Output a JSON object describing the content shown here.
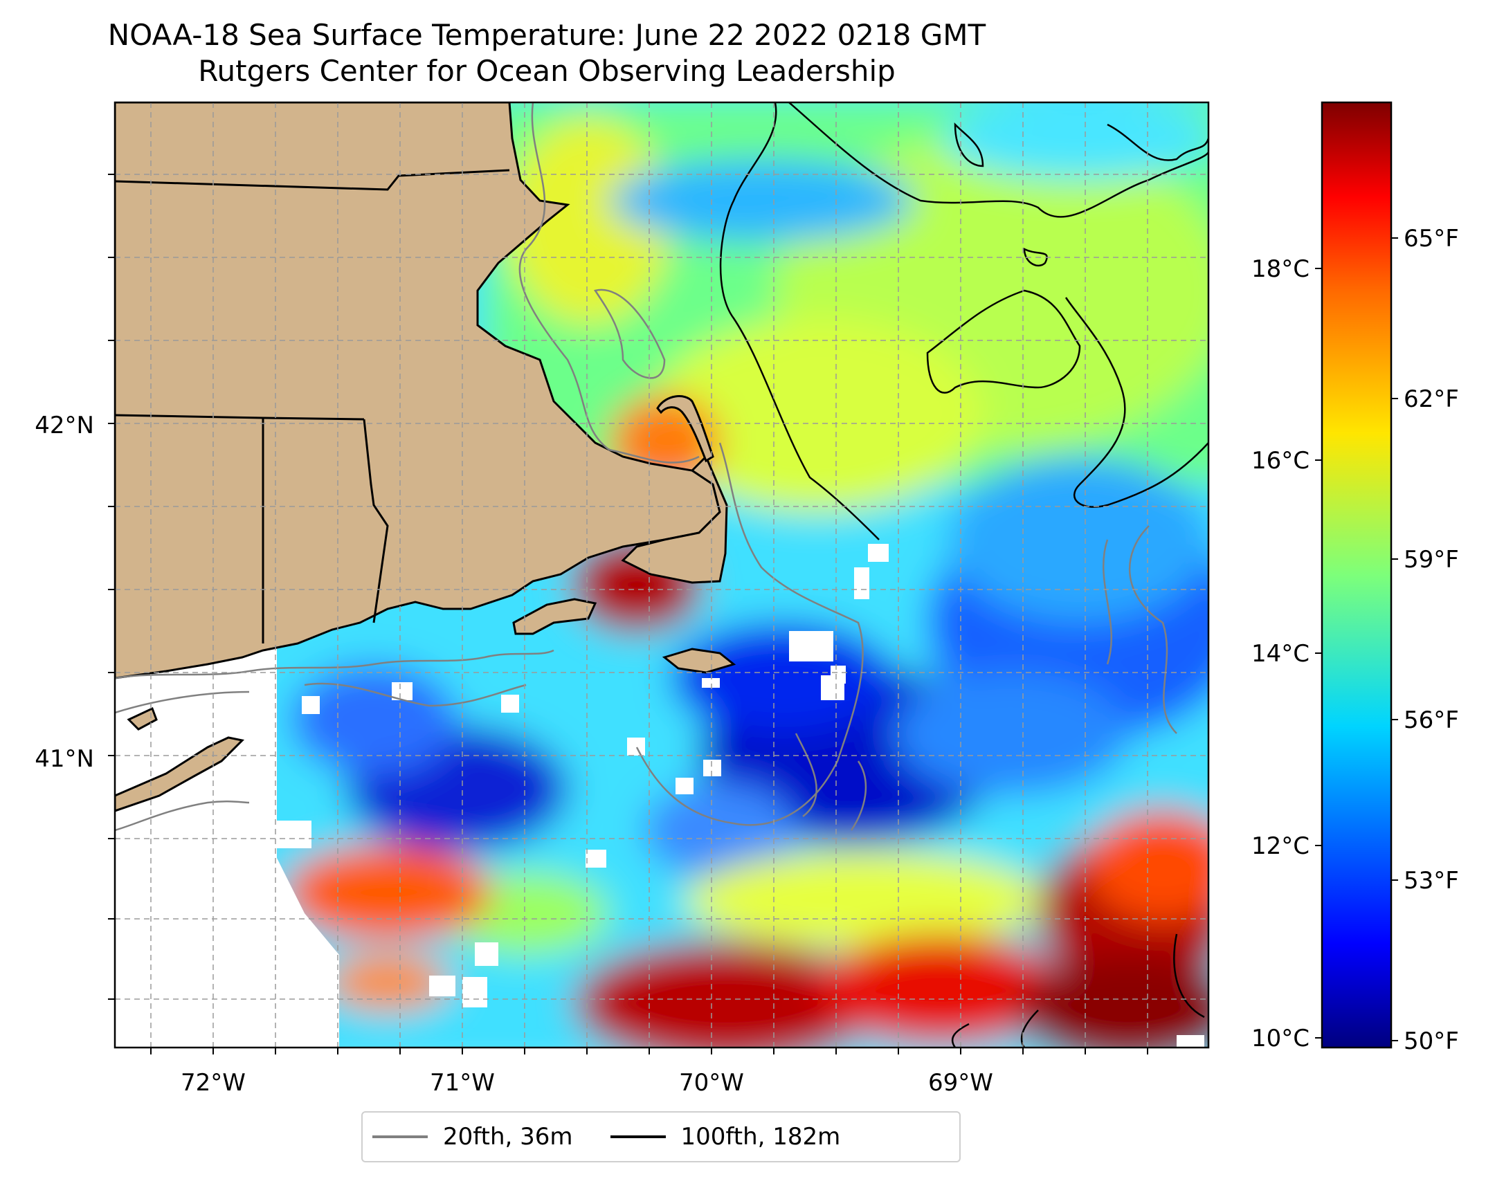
{
  "title": "NOAA-18 Sea Surface Temperature: June 22 2022 0218 GMT",
  "subtitle": "Rutgers Center for Ocean Observing Leadership",
  "map": {
    "lon_ticks": [
      "72°W",
      "71°W",
      "70°W",
      "69°W"
    ],
    "lat_ticks": [
      "42°N",
      "41°N"
    ],
    "colors": {
      "land": "#d2b48c",
      "coast": "#000000",
      "isobath_20": "#808080",
      "isobath_100": "#000000"
    }
  },
  "colorbar": {
    "celsius_ticks": [
      "18°C",
      "16°C",
      "14°C",
      "12°C",
      "10°C"
    ],
    "fahrenheit_ticks": [
      "65°F",
      "62°F",
      "59°F",
      "56°F",
      "53°F",
      "50°F"
    ],
    "colormap": "jet"
  },
  "legend": {
    "items": [
      {
        "label": "20fth, 36m",
        "color": "#808080"
      },
      {
        "label": "100fth, 182m",
        "color": "#000000"
      }
    ]
  }
}
